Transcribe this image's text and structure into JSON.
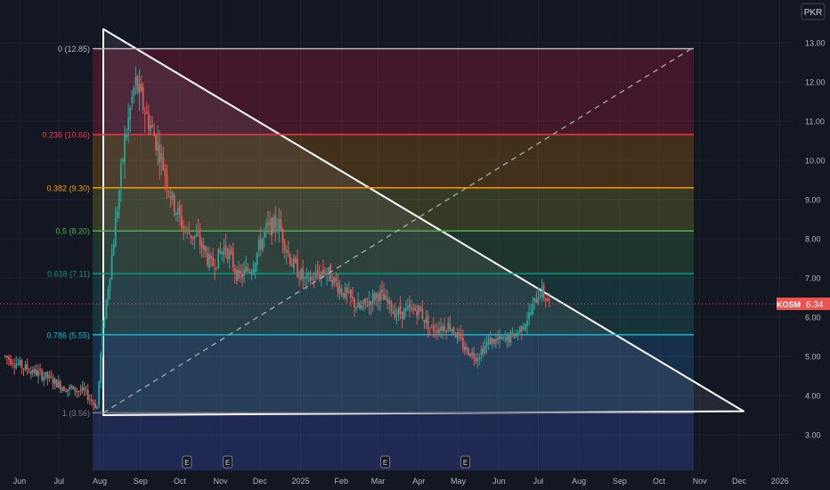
{
  "currency": "PKR",
  "ticker": "KOSM",
  "last_price": "6.34",
  "colors": {
    "background": "#131722",
    "up": "#26a69a",
    "down": "#ef5350",
    "axis_text": "#b2b5be",
    "ticker_badge": "#ef5350"
  },
  "earnings_marker": "E",
  "chart_data": {
    "type": "candlestick",
    "y_axis": {
      "ticks": [
        "3.00",
        "4.00",
        "5.00",
        "6.00",
        "7.00",
        "8.00",
        "9.00",
        "10.00",
        "11.00",
        "12.00",
        "13.00"
      ],
      "range": [
        2.1,
        13.7
      ]
    },
    "x_axis": {
      "ticks": [
        "Jun",
        "Jul",
        "Aug",
        "Sep",
        "Oct",
        "Nov",
        "Dec",
        "2025",
        "Feb",
        "Mar",
        "Apr",
        "May",
        "Jun",
        "Jul",
        "Aug",
        "Sep",
        "Oct",
        "Nov",
        "Dec",
        "2026"
      ],
      "tick_dates": [
        "2024-06",
        "2024-07",
        "2024-08",
        "2024-09",
        "2024-10",
        "2024-11",
        "2024-12",
        "2025-01",
        "2025-02",
        "2025-03",
        "2025-04",
        "2025-05",
        "2025-06",
        "2025-07",
        "2025-08",
        "2025-09",
        "2025-10",
        "2025-11",
        "2025-12",
        "2026-01"
      ]
    },
    "fibonacci": [
      {
        "label": "0 (12.85)",
        "level": 12.85,
        "color": "#b2b5be"
      },
      {
        "label": "0.236 (10.66)",
        "level": 10.66,
        "color": "#f23645"
      },
      {
        "label": "0.382 (9.30)",
        "level": 9.3,
        "color": "#ff9800"
      },
      {
        "label": "0.5 (8.20)",
        "level": 8.2,
        "color": "#4caf50"
      },
      {
        "label": "0.618 (7.11)",
        "level": 7.11,
        "color": "#089981"
      },
      {
        "label": "0.786 (5.55)",
        "level": 5.55,
        "color": "#00bcd4"
      },
      {
        "label": "1 (3.56)",
        "level": 3.56,
        "color": "#787b86"
      }
    ],
    "fib_zone_colors": [
      "#ff1744",
      "#ff9800",
      "#c0ca33",
      "#4caf50",
      "#26a69a",
      "#2196f3",
      "#3f51b5"
    ],
    "earnings_dates": [
      "2024-10",
      "2024-11",
      "2025-03",
      "2025-05"
    ],
    "triangle": {
      "apex_high": {
        "date": "2024-08-01",
        "price": 13.35
      },
      "apex_low": {
        "date": "2024-08-01",
        "price": 3.5
      },
      "apex_right": {
        "date": "2025-12-01",
        "price": 3.6
      }
    },
    "trend_line_dashed": {
      "from": {
        "date": "2024-08-01",
        "price": 3.56
      },
      "to": {
        "date": "2025-10-31",
        "price": 12.85
      }
    },
    "series": [
      {
        "date": "2024-05-21",
        "close": 5.0
      },
      {
        "date": "2024-06-05",
        "close": 4.7
      },
      {
        "date": "2024-06-20",
        "close": 4.5
      },
      {
        "date": "2024-07-05",
        "close": 4.2
      },
      {
        "date": "2024-07-20",
        "close": 4.1
      },
      {
        "date": "2024-07-30",
        "close": 3.7
      },
      {
        "date": "2024-08-03",
        "close": 5.6
      },
      {
        "date": "2024-08-10",
        "close": 7.5
      },
      {
        "date": "2024-08-20",
        "close": 10.5
      },
      {
        "date": "2024-08-28",
        "close": 12.0
      },
      {
        "date": "2024-09-05",
        "close": 11.2
      },
      {
        "date": "2024-09-15",
        "close": 10.3
      },
      {
        "date": "2024-09-25",
        "close": 9.0
      },
      {
        "date": "2024-10-05",
        "close": 8.2
      },
      {
        "date": "2024-10-15",
        "close": 8.0
      },
      {
        "date": "2024-10-25",
        "close": 7.3
      },
      {
        "date": "2024-11-05",
        "close": 7.8
      },
      {
        "date": "2024-11-15",
        "close": 7.0
      },
      {
        "date": "2024-11-25",
        "close": 7.3
      },
      {
        "date": "2024-12-05",
        "close": 8.2
      },
      {
        "date": "2024-12-15",
        "close": 8.4
      },
      {
        "date": "2024-12-25",
        "close": 7.4
      },
      {
        "date": "2025-01-05",
        "close": 6.9
      },
      {
        "date": "2025-01-20",
        "close": 7.2
      },
      {
        "date": "2025-02-01",
        "close": 6.7
      },
      {
        "date": "2025-02-15",
        "close": 6.2
      },
      {
        "date": "2025-03-01",
        "close": 6.6
      },
      {
        "date": "2025-03-15",
        "close": 6.1
      },
      {
        "date": "2025-04-01",
        "close": 6.2
      },
      {
        "date": "2025-04-10",
        "close": 5.7
      },
      {
        "date": "2025-04-25",
        "close": 5.8
      },
      {
        "date": "2025-05-06",
        "close": 5.2
      },
      {
        "date": "2025-05-15",
        "close": 5.0
      },
      {
        "date": "2025-05-25",
        "close": 5.4
      },
      {
        "date": "2025-06-05",
        "close": 5.4
      },
      {
        "date": "2025-06-15",
        "close": 5.6
      },
      {
        "date": "2025-06-25",
        "close": 6.1
      },
      {
        "date": "2025-07-02",
        "close": 6.7
      },
      {
        "date": "2025-07-10",
        "close": 6.34
      }
    ]
  }
}
